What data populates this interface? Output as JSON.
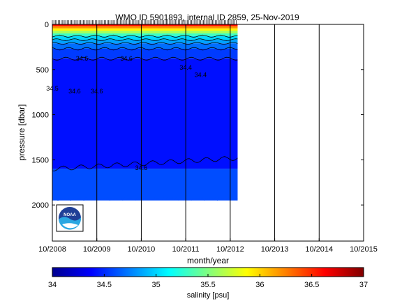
{
  "chart_data": {
    "type": "heatmap",
    "title": "WMO ID 5901893, internal ID 2859, 25-Nov-2019",
    "xlabel": "month/year",
    "ylabel": "pressure [dbar]",
    "colorbar_label": "salinity [psu]",
    "x_ticks": [
      "10/2008",
      "10/2009",
      "10/2010",
      "10/2011",
      "10/2012",
      "10/2013",
      "10/2014",
      "10/2015"
    ],
    "x_range": [
      "2008-10",
      "2015-10"
    ],
    "y_ticks": [
      0,
      500,
      1000,
      1500,
      2000
    ],
    "ylim": [
      2400,
      0
    ],
    "y_reversed": true,
    "colorbar_ticks": [
      34,
      34.5,
      35,
      35.5,
      36,
      36.5,
      37
    ],
    "clim": [
      34,
      37
    ],
    "colormap": "jet",
    "data_extent": {
      "start": "2008-10",
      "end": "2012-12",
      "max_pressure": 1950
    },
    "contour_labels": [
      {
        "text": "34.6",
        "date": "2009-06",
        "pressure": 380
      },
      {
        "text": "34.6",
        "date": "2010-06",
        "pressure": 380
      },
      {
        "text": "34.4",
        "date": "2011-10",
        "pressure": 480
      },
      {
        "text": "34.4",
        "date": "2012-02",
        "pressure": 560
      },
      {
        "text": "34.5",
        "date": "2008-10",
        "pressure": 710
      },
      {
        "text": "34.6",
        "date": "2009-04",
        "pressure": 740
      },
      {
        "text": "34.6",
        "date": "2009-10",
        "pressure": 740
      },
      {
        "text": "34.6",
        "date": "2010-10",
        "pressure": 1590
      }
    ],
    "grid": "vertical lines at x ticks",
    "logo": "NOAA"
  }
}
